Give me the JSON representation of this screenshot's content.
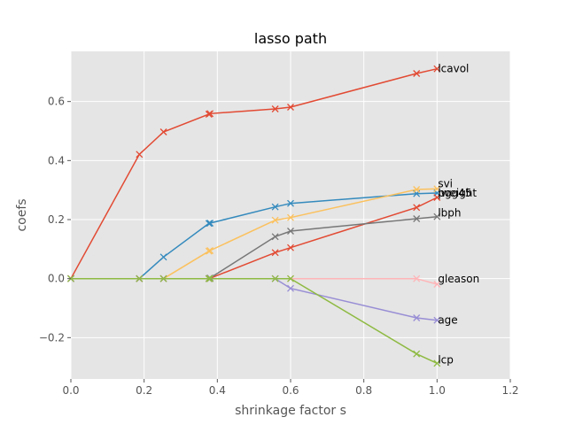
{
  "chart_data": {
    "type": "line",
    "title": "lasso path",
    "xlabel": "shrinkage factor s",
    "ylabel": "coefs",
    "xlim": [
      0,
      1.2
    ],
    "ylim": [
      -0.34,
      0.77
    ],
    "xticks": [
      "0.0",
      "0.2",
      "0.4",
      "0.6",
      "0.8",
      "1.0",
      "1.2"
    ],
    "yticks": [
      "−0.2",
      "0.0",
      "0.2",
      "0.4",
      "0.6"
    ],
    "xtick_values": [
      0,
      0.2,
      0.4,
      0.6,
      0.8,
      1.0,
      1.2
    ],
    "ytick_values": [
      -0.2,
      0,
      0.2,
      0.4,
      0.6
    ],
    "grid": true,
    "background": "#e5e5e5",
    "marker": "x",
    "x": [
      0,
      0.187,
      0.253,
      0.377,
      0.38,
      0.558,
      0.6,
      0.944,
      1.0
    ],
    "series": [
      {
        "name": "lcavol",
        "color": "#e24a33",
        "values": [
          0,
          0.421,
          0.497,
          0.557,
          0.559,
          0.575,
          0.581,
          0.695,
          0.711
        ]
      },
      {
        "name": "lweight",
        "color": "#348abd",
        "values": [
          0,
          0,
          0.073,
          0.187,
          0.188,
          0.243,
          0.255,
          0.288,
          0.29
        ]
      },
      {
        "name": "svi",
        "color": "#fbc15e",
        "values": [
          0,
          0,
          0,
          0.093,
          0.095,
          0.198,
          0.207,
          0.302,
          0.304
        ]
      },
      {
        "name": "pgg45",
        "color": "#e24a33",
        "values": [
          0,
          0,
          0,
          0,
          0.001,
          0.088,
          0.105,
          0.241,
          0.275
        ]
      },
      {
        "name": "lbph",
        "color": "#777777",
        "values": [
          0,
          0,
          0,
          0,
          0.002,
          0.142,
          0.161,
          0.203,
          0.21
        ]
      },
      {
        "name": "gleason",
        "color": "#ffb5b8",
        "values": [
          0,
          0,
          0,
          0,
          0,
          0,
          0,
          0,
          -0.019
        ]
      },
      {
        "name": "age",
        "color": "#988ed5",
        "values": [
          0,
          0,
          0,
          0,
          0,
          0,
          -0.033,
          -0.133,
          -0.141
        ]
      },
      {
        "name": "lcp",
        "color": "#8eba42",
        "values": [
          0,
          0,
          0,
          0,
          0,
          0,
          0,
          -0.255,
          -0.287
        ]
      }
    ],
    "label_offsets_note_removed": true
  }
}
